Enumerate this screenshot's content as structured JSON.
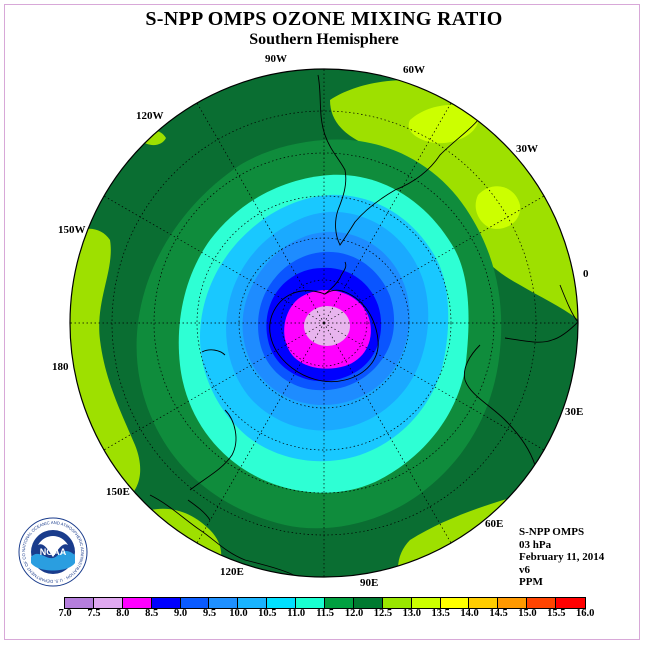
{
  "title": "S-NPP OMPS OZONE MIXING RATIO",
  "subtitle": "Southern Hemisphere",
  "longitude_labels": [
    "90W",
    "60W",
    "30W",
    "0",
    "30E",
    "60E",
    "90E",
    "120E",
    "150E",
    "180",
    "150W",
    "120W"
  ],
  "info": {
    "instrument": "S-NPP OMPS",
    "level": "03 hPa",
    "date": "February 11, 2014",
    "version": "v6",
    "units": "PPM"
  },
  "logo": {
    "text": "NOAA",
    "ring_text": "NATIONAL OCEANIC AND ATMOSPHERIC ADMINISTRATION · U.S. DEPARTMENT OF COMMERCE"
  },
  "colorbar": {
    "ticks": [
      "7.0",
      "7.5",
      "8.0",
      "8.5",
      "9.0",
      "9.5",
      "10.0",
      "10.5",
      "11.0",
      "11.5",
      "12.0",
      "12.5",
      "13.0",
      "13.5",
      "14.0",
      "14.5",
      "15.0",
      "15.5",
      "16.0"
    ],
    "colors": [
      "#b57edc",
      "#e0a8f0",
      "#ff00ff",
      "#0000ff",
      "#0a5bff",
      "#1e90ff",
      "#19b4ff",
      "#00e0ff",
      "#19ffd0",
      "#00a040",
      "#007a30",
      "#99e600",
      "#ccff00",
      "#ffff00",
      "#ffcc00",
      "#ff9900",
      "#ff4400",
      "#ff0000",
      "#8b4513"
    ]
  },
  "map_colors": {
    "outer": "#0a6e32",
    "ring_11_5": "#0f8c3c",
    "ring_11_0": "#2effd4",
    "ring_10_5": "#19c8ff",
    "ring_10_0": "#1aaaff",
    "ring_9_5": "#1e8cff",
    "ring_9_0": "#0a55ff",
    "ring_8_5": "#0000ff",
    "ring_8_0": "#ff00ff",
    "ring_7_5": "#e8b4ee",
    "patch_12_0": "#9ee000",
    "patch_12_5": "#ccff00"
  }
}
